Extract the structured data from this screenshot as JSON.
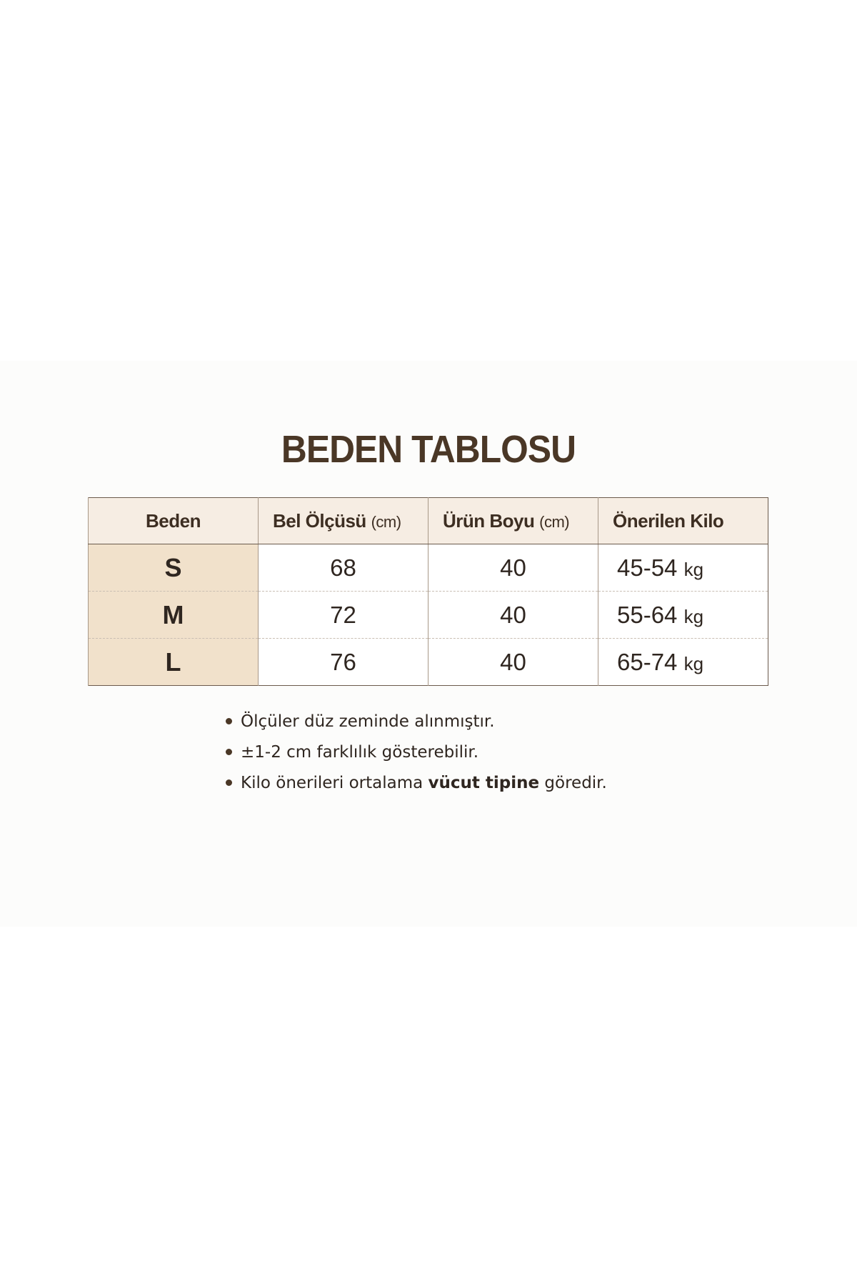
{
  "title": "BEDEN TABLOSU",
  "colors": {
    "text": "#3d2e22",
    "header_bg": "#f6ede3",
    "size_col_bg": "#f1e1cb",
    "border": "#6b5a4c"
  },
  "table": {
    "headers": [
      {
        "label": "Beden",
        "unit": ""
      },
      {
        "label": "Bel Ölçüsü",
        "unit": "(cm)"
      },
      {
        "label": "Ürün Boyu",
        "unit": "(cm)"
      },
      {
        "label": "Önerilen Kilo",
        "unit": ""
      }
    ],
    "rows": [
      {
        "size": "S",
        "waist": "68",
        "length": "40",
        "weight": "45-54",
        "weight_unit": "kg"
      },
      {
        "size": "M",
        "waist": "72",
        "length": "40",
        "weight": "55-64",
        "weight_unit": "kg"
      },
      {
        "size": "L",
        "waist": "76",
        "length": "40",
        "weight": "65-74",
        "weight_unit": "kg"
      }
    ]
  },
  "notes": [
    {
      "text": "Ölçüler düz zeminde alınmıştır."
    },
    {
      "text": "±1-2 cm farklılık gösterebilir."
    },
    {
      "before": "Kilo önerileri ortalama ",
      "bold": "vücut tipine",
      "after": " göredir."
    }
  ]
}
